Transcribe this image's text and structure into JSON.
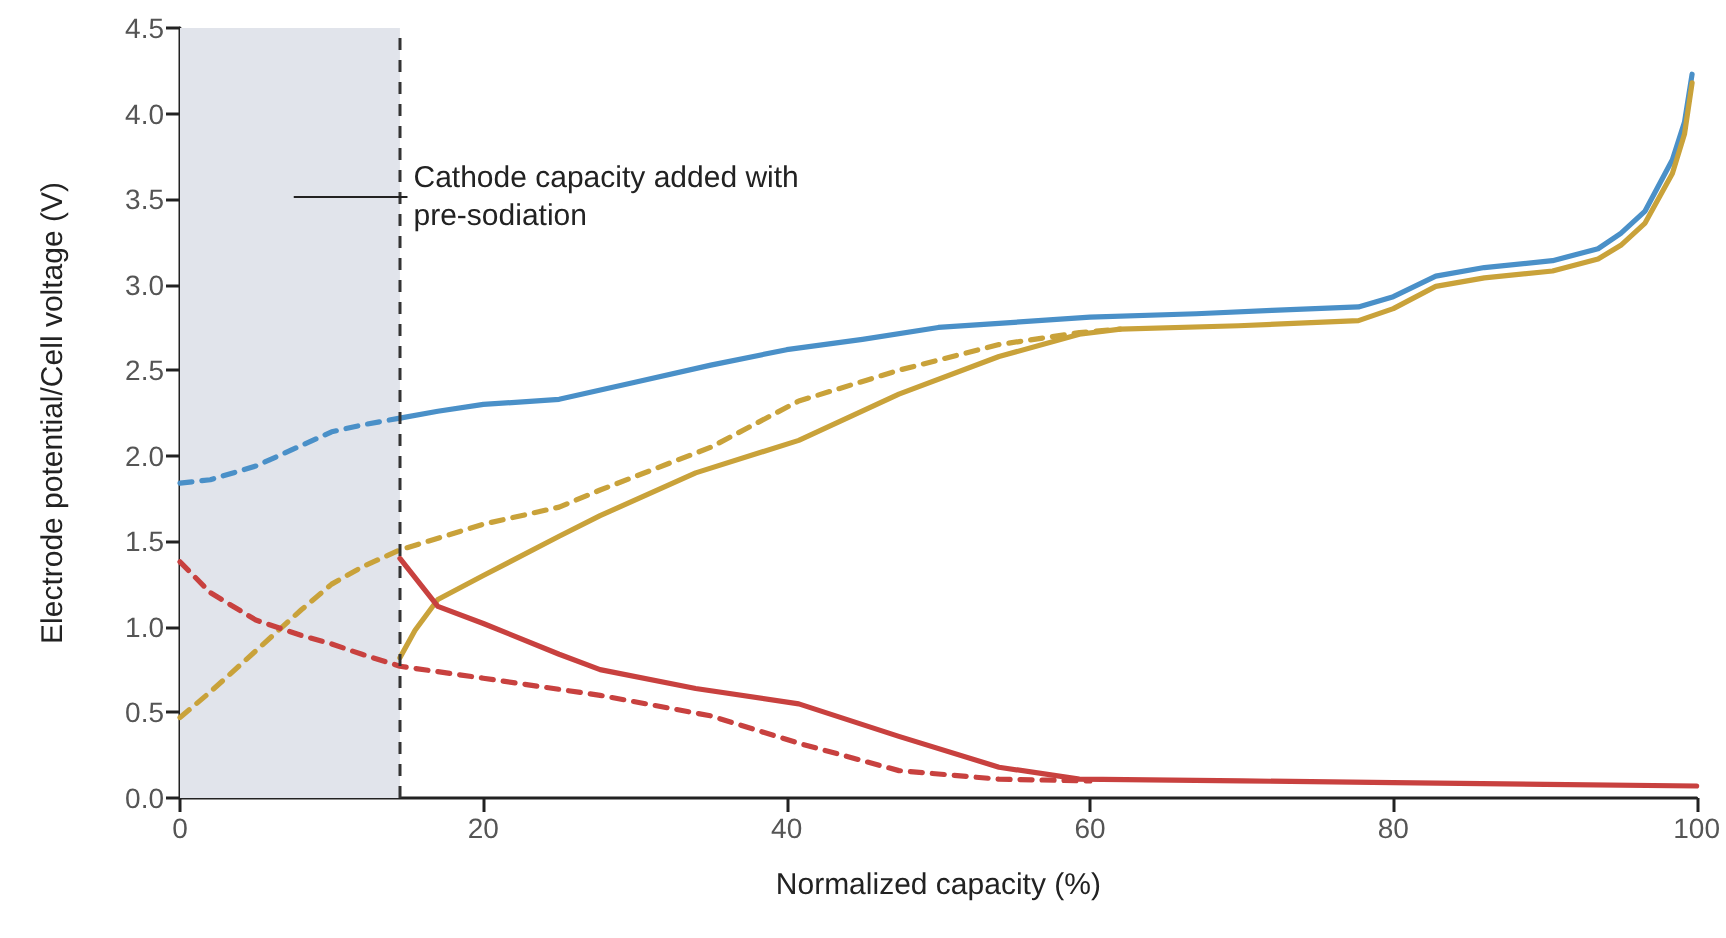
{
  "chart_data": {
    "type": "line",
    "xlabel": "Normalized capacity (%)",
    "ylabel": "Electrode potential/Cell voltage (V)",
    "xlim": [
      0,
      100
    ],
    "xticks": [
      0,
      20,
      40,
      60,
      80,
      100
    ],
    "ylim": [
      0,
      4.5
    ],
    "yticks": [
      {
        "value": 0,
        "label": "0.0"
      },
      {
        "value": 0.5,
        "label": "0.5"
      },
      {
        "value": 1,
        "label": "1.0"
      },
      {
        "value": 1.5,
        "label": "1.5"
      },
      {
        "value": 2,
        "label": "2.0"
      },
      {
        "value": 2.5,
        "label": "2.5"
      },
      {
        "value": 3,
        "label": "3.0"
      },
      {
        "value": 3.5,
        "label": "3.5"
      },
      {
        "value": 4,
        "label": "4.0"
      },
      {
        "value": 4.5,
        "label": "4.5"
      }
    ],
    "grid": false,
    "legend": false,
    "marker": "none",
    "series": [
      {
        "color": "#4a90c8",
        "line_style": "dashed",
        "x": [
          0,
          2,
          5,
          8,
          10,
          12,
          14.5
        ],
        "values": [
          1.84,
          1.86,
          1.94,
          2.06,
          2.14,
          2.18,
          2.22
        ]
      },
      {
        "color": "#4a90c8",
        "line_style": "solid",
        "x": [
          14.5,
          17,
          20,
          25,
          30,
          35,
          40,
          45,
          50,
          55,
          60,
          67,
          72,
          77.7,
          80,
          82.8,
          86,
          90.5,
          93.5,
          95,
          96.6,
          98.4,
          99.2,
          99.7
        ],
        "values": [
          2.22,
          2.26,
          2.3,
          2.33,
          2.43,
          2.53,
          2.62,
          2.68,
          2.75,
          2.78,
          2.81,
          2.83,
          2.85,
          2.87,
          2.93,
          3.05,
          3.1,
          3.14,
          3.21,
          3.3,
          3.43,
          3.73,
          3.95,
          4.23
        ]
      },
      {
        "color": "#c9a23a",
        "line_style": "dashed",
        "x": [
          0,
          2,
          5,
          8,
          10,
          12,
          14.5,
          20,
          25,
          27.7,
          35,
          40.8,
          47.4,
          54,
          59.3,
          62
        ],
        "values": [
          0.47,
          0.62,
          0.86,
          1.1,
          1.25,
          1.35,
          1.45,
          1.6,
          1.7,
          1.8,
          2.05,
          2.32,
          2.5,
          2.65,
          2.72,
          2.74
        ]
      },
      {
        "color": "#c9a23a",
        "line_style": "solid",
        "x": [
          14.5,
          15.5,
          17,
          20,
          25,
          27.7,
          34,
          40.8,
          47.4,
          54,
          59.3,
          62,
          69.8,
          77.7,
          80,
          82.8,
          86,
          90.5,
          93.5,
          95,
          96.6,
          98.4,
          99.2,
          99.7
        ],
        "values": [
          0.82,
          0.98,
          1.16,
          1.3,
          1.53,
          1.65,
          1.9,
          2.09,
          2.36,
          2.58,
          2.71,
          2.74,
          2.76,
          2.79,
          2.86,
          2.99,
          3.04,
          3.08,
          3.15,
          3.23,
          3.36,
          3.65,
          3.88,
          4.18
        ]
      },
      {
        "color": "#c8413f",
        "line_style": "dashed",
        "x": [
          0,
          2,
          5,
          8,
          10,
          12,
          14.5,
          20,
          27.7,
          35,
          40.8,
          47.4,
          54,
          60
        ],
        "values": [
          1.38,
          1.2,
          1.04,
          0.95,
          0.9,
          0.84,
          0.77,
          0.7,
          0.6,
          0.48,
          0.32,
          0.16,
          0.11,
          0.1
        ]
      },
      {
        "color": "#c8413f",
        "line_style": "solid",
        "x": [
          14.5,
          17,
          20,
          25,
          27.7,
          34,
          40.8,
          47.4,
          54,
          59.3,
          70,
          80,
          90,
          100
        ],
        "values": [
          1.4,
          1.12,
          1.02,
          0.84,
          0.75,
          0.64,
          0.55,
          0.36,
          0.18,
          0.11,
          0.1,
          0.09,
          0.08,
          0.07
        ]
      }
    ],
    "bands": [
      {
        "axis": "x",
        "from": 0,
        "to": 14.5,
        "color": "#e1e4eb"
      }
    ],
    "ref_lines": [
      {
        "axis": "x",
        "value": 14.5,
        "label": "Cathode capacity added with pre-sodiation",
        "color": "#333333",
        "line_style": "dashed"
      }
    ]
  }
}
